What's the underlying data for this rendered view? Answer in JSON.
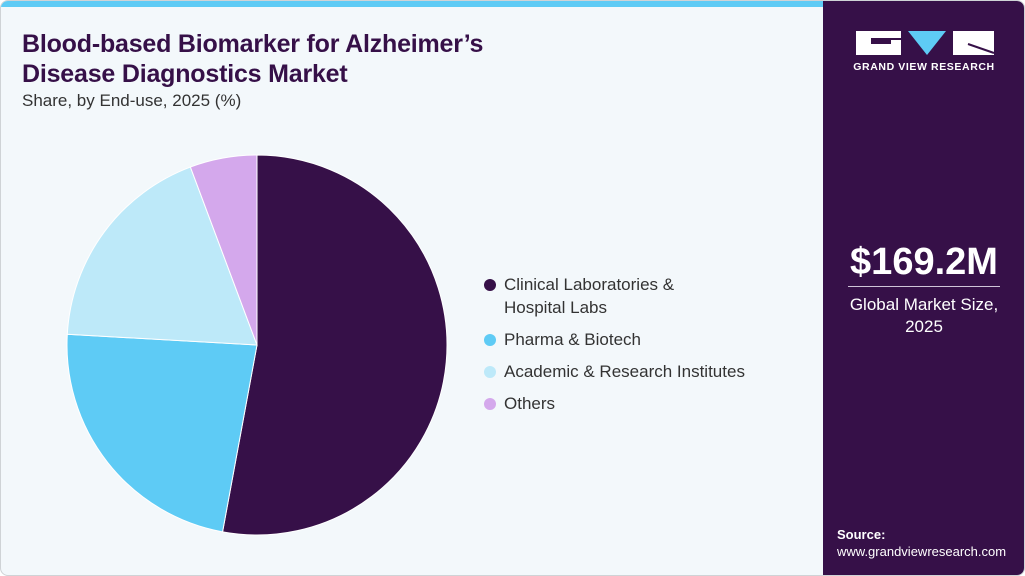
{
  "header": {
    "title_line1": "Blood-based Biomarker for Alzheimer’s",
    "title_line2": "Disease Diagnostics Market",
    "subtitle": "Share, by End-use, 2025 (%)"
  },
  "legend": [
    {
      "line1": "Clinical Laboratories &",
      "line2": "Hospital Labs",
      "color": "#361048"
    },
    {
      "line1": "Pharma & Biotech",
      "line2": "",
      "color": "#5ecbf5"
    },
    {
      "line1": "Academic & Research Institutes",
      "line2": "",
      "color": "#bde9f9"
    },
    {
      "line1": "Others",
      "line2": "",
      "color": "#d4a8ec"
    }
  ],
  "sidebar": {
    "logo_text": "GRAND VIEW RESEARCH",
    "market_value": "$169.2M",
    "market_label_line1": "Global Market Size,",
    "market_label_line2": "2025",
    "source_label": "Source:",
    "source_url": "www.grandviewresearch.com"
  },
  "colors": {
    "brand_dark": "#361048",
    "accent": "#5ecbf5",
    "background": "#f3f8fb"
  },
  "chart_data": {
    "type": "pie",
    "title": "Blood-based Biomarker for Alzheimer’s Disease Diagnostics Market",
    "subtitle": "Share, by End-use, 2025 (%)",
    "categories": [
      "Clinical Laboratories & Hospital Labs",
      "Pharma & Biotech",
      "Academic & Research Institutes",
      "Others"
    ],
    "values": [
      52.9,
      23.0,
      18.4,
      5.7
    ],
    "colors": [
      "#361048",
      "#5ecbf5",
      "#bde9f9",
      "#d4a8ec"
    ],
    "start_angle": "12 o'clock, clockwise",
    "legend_position": "right",
    "data_labels": false
  }
}
